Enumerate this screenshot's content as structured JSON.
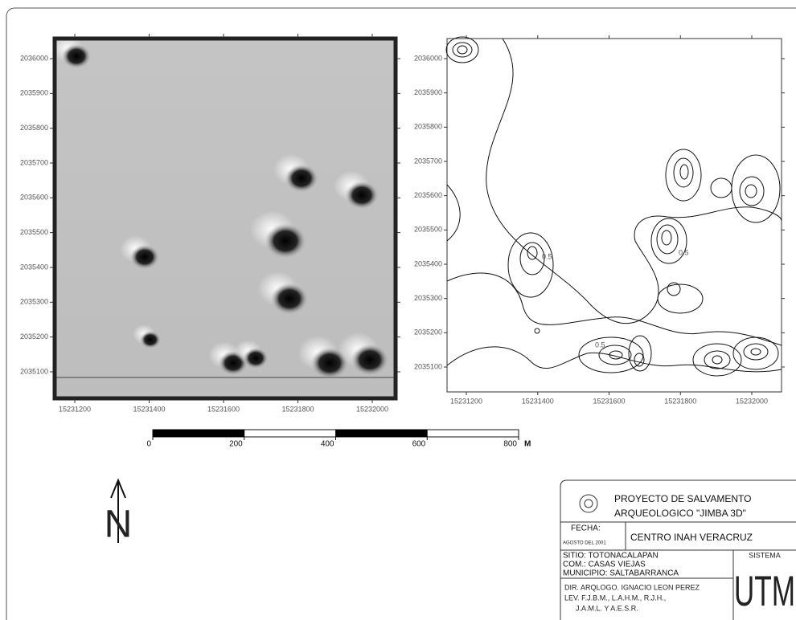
{
  "left_map": {
    "yticks": [
      2036000,
      2035900,
      2035800,
      2035700,
      2035600,
      2035500,
      2035400,
      2035300,
      2035200,
      2035100
    ],
    "xticks": [
      15231200,
      15231400,
      15231600,
      15231800,
      15232000
    ]
  },
  "right_map": {
    "yticks": [
      2036000,
      2035900,
      2035800,
      2035700,
      2035600,
      2035500,
      2035400,
      2035300,
      2035200,
      2035100
    ],
    "xticks": [
      15231200,
      15231400,
      15231600,
      15231800,
      15232000
    ],
    "contour_labels": [
      "0.5",
      "0.5",
      "0.5"
    ]
  },
  "scale_bar": {
    "ticks": [
      0,
      200,
      400,
      600,
      800
    ],
    "unit": "M"
  },
  "north_arrow": {
    "label": "N"
  },
  "title_block": {
    "project": "PROYECTO DE SALVAMENTO",
    "project_line2": "ARQUEOLOGICO \"JIMBA 3D\"",
    "fecha_label": "FECHA:",
    "fecha": "AGOSTO DEL 2001",
    "institution": "CENTRO INAH VERACRUZ",
    "site": [
      "SITIO: TOTONACALAPAN",
      "COM.: CASAS VIEJAS",
      "MUNICIPIO: SALTABARRANCA"
    ],
    "system_label": "SISTEMA",
    "system": "UTM",
    "credits": [
      "DIR. ARQLOGO. IGNACIO LEON PEREZ",
      "LEV. F.J.B.M., L.A.H.M., R.J.H.,",
      "J.A.M.L. Y A.E.S.R."
    ]
  }
}
